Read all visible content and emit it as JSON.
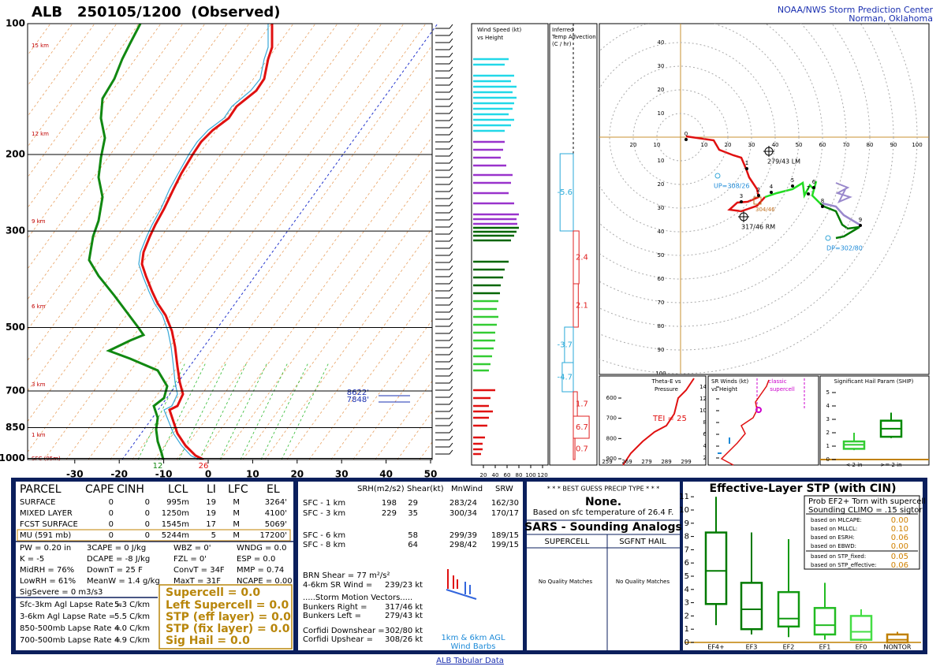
{
  "header": {
    "title": "ALB   250105/1200  (Observed)",
    "agency": "NOAA/NWS Storm Prediction Center",
    "location": "Norman, Oklahoma"
  },
  "skewt": {
    "yticks": [
      100,
      200,
      300,
      500,
      700,
      850,
      1000
    ],
    "xticks": [
      -30,
      -20,
      -10,
      0,
      10,
      20,
      30,
      40,
      50
    ],
    "height_labels": [
      "15 km",
      "12 km",
      "9 km",
      "6 km",
      "3 km",
      "1 km",
      "SFC (95m)"
    ],
    "sfc_dewpoint": "12",
    "sfc_temp": "26",
    "level_labels": [
      "8622'",
      "7848'"
    ]
  },
  "wind_speed": {
    "title": "Wind Speed (kt)",
    "subtitle": "vs Height",
    "xticks": [
      20,
      40,
      60,
      80,
      100,
      120
    ]
  },
  "temp_advection": {
    "title": [
      "Inferred",
      "Temp Advection",
      "(C / hr)"
    ],
    "values": [
      -5.6,
      2.4,
      2.1,
      -3.7,
      -4.7,
      1.7,
      6.7,
      0.7
    ]
  },
  "hodograph": {
    "up_labels": [
      40,
      30,
      20,
      10
    ],
    "down_labels": [
      10,
      20,
      30,
      40,
      50,
      60,
      70,
      80,
      90,
      100
    ],
    "left_labels": [
      20,
      10
    ],
    "right_labels": [
      10,
      20,
      30,
      40,
      50,
      60,
      70,
      80,
      90,
      100
    ],
    "points": [
      0,
      1,
      2,
      3,
      4,
      5,
      6,
      7,
      8,
      9
    ],
    "annotations": [
      "279/43 LM",
      "UP=308/26",
      "317/46 RM",
      "304/46",
      "DP=302/80"
    ]
  },
  "theta_e": {
    "title": [
      "Theta-E vs",
      "Pressure"
    ],
    "yticks": [
      600,
      700,
      800,
      900
    ],
    "xticks": [
      259,
      269,
      279,
      289,
      299
    ],
    "tei": "TEI = 25"
  },
  "sr_winds": {
    "title": [
      "SR Winds (kt)",
      "vs Height"
    ],
    "yticks": [
      2,
      4,
      6,
      8,
      10,
      12,
      14
    ],
    "annotation": [
      "classic",
      "supercell"
    ]
  },
  "ship": {
    "title": "Significant Hail Param (SHIP)",
    "yticks": [
      0,
      1,
      2,
      3,
      4,
      5
    ],
    "categories": [
      "< 2 in",
      ">= 2 in"
    ],
    "colors": [
      "#33cc33",
      "#008800"
    ],
    "boxes": [
      {
        "low": 0.7,
        "q1": 0.8,
        "median": 1.1,
        "q3": 1.35,
        "high": 2.0
      },
      {
        "low": 1.6,
        "q1": 1.7,
        "median": 2.3,
        "q3": 2.9,
        "high": 3.5
      }
    ]
  },
  "parcels": {
    "header": [
      "PARCEL",
      "CAPE",
      "CINH",
      "LCL",
      "LI",
      "LFC",
      "EL"
    ],
    "rows": [
      [
        "SURFACE",
        0,
        0,
        "995m",
        19,
        "M",
        "3264'"
      ],
      [
        "MIXED LAYER",
        0,
        0,
        "1250m",
        19,
        "M",
        "4100'"
      ],
      [
        "FCST SURFACE",
        0,
        0,
        "1545m",
        17,
        "M",
        "5069'"
      ],
      [
        "MU  (591 mb)",
        0,
        0,
        "5244m",
        5,
        "M",
        "17200'"
      ]
    ]
  },
  "indices": {
    "rows": [
      [
        "PW = 0.20 in",
        "3CAPE = 0 J/kg",
        "WBZ = 0'",
        "WNDG = 0.0"
      ],
      [
        "K = -5",
        "DCAPE = -8 J/kg",
        "FZL = 0'",
        "ESP = 0.0"
      ],
      [
        "MidRH = 76%",
        "DownT = 25 F",
        "ConvT = 34F",
        "MMP = 0.74"
      ],
      [
        "LowRH = 61%",
        "MeanW = 1.4 g/kg",
        "MaxT = 31F",
        "NCAPE = 0.00"
      ]
    ],
    "sig_severe": "SigSevere = 0 m3/s3"
  },
  "lapse_rates": [
    [
      "Sfc-3km Agl Lapse Rate =",
      "5.3 C/km"
    ],
    [
      "3-6km Agl Lapse Rate =",
      "5.5 C/km"
    ],
    [
      "850-500mb Lapse Rate =",
      "4.0 C/km"
    ],
    [
      "700-500mb Lapse Rate =",
      "4.9 C/km"
    ]
  ],
  "severe_params": [
    "Supercell = 0.0",
    "Left Supercell = 0.0",
    "STP (eff layer) = 0.0",
    "STP (fix layer) = 0.0",
    "Sig Hail = 0.0"
  ],
  "kinematics": {
    "header": [
      "SRH(m2/s2)",
      "Shear(kt)",
      "MnWind",
      "SRW"
    ],
    "rows": [
      [
        "SFC - 1 km",
        198,
        29,
        "283/24",
        "162/30"
      ],
      [
        "SFC - 3 km",
        229,
        35,
        "300/34",
        "170/17"
      ],
      [
        "SFC - 6 km",
        null,
        58,
        "299/39",
        "189/15"
      ],
      [
        "SFC - 8 km",
        null,
        64,
        "298/42",
        "199/15"
      ]
    ],
    "brn": "BRN Shear = 77 m²/s²",
    "sr_wind": [
      "4-6km SR Wind =",
      "239/23 kt"
    ],
    "storm_motion_title": ".....Storm Motion Vectors.....",
    "bunkers": [
      [
        "Bunkers Right =",
        "317/46 kt"
      ],
      [
        "Bunkers Left =",
        "279/43 kt"
      ]
    ],
    "corfidi": [
      [
        "Corfidi Downshear =",
        "302/80 kt"
      ],
      [
        "Corfidi Upshear =",
        "308/26 kt"
      ]
    ],
    "barb_note": [
      "1km & 6km AGL",
      "Wind Barbs"
    ]
  },
  "precip": {
    "title": "* * * BEST GUESS PRECIP TYPE * * *",
    "result": "None.",
    "note": "Based on sfc temperature of 26.4 F."
  },
  "sars": {
    "title": "SARS - Sounding Analogs",
    "columns": [
      "SUPERCELL",
      "SGFNT HAIL"
    ],
    "matches": [
      "No Quality Matches",
      "No Quality Matches"
    ]
  },
  "stp": {
    "title": "Effective-Layer STP (with CIN)",
    "yticks": [
      0,
      1,
      2,
      3,
      4,
      5,
      6,
      7,
      8,
      9,
      10,
      11
    ],
    "categories": [
      "EF4+",
      "EF3",
      "EF2",
      "EF1",
      "EF0",
      "NONTOR"
    ],
    "colors": [
      "#007a00",
      "#007a00",
      "#119911",
      "#22bb22",
      "#44dd44",
      "#c08000"
    ],
    "boxes": [
      {
        "low": 1.3,
        "q1": 2.9,
        "median": 5.4,
        "q3": 8.3,
        "high": 11
      },
      {
        "low": 0.6,
        "q1": 1.0,
        "median": 2.5,
        "q3": 4.5,
        "high": 8.3
      },
      {
        "low": 0.4,
        "q1": 1.2,
        "median": 1.8,
        "q3": 3.8,
        "high": 7.8
      },
      {
        "low": 0.2,
        "q1": 0.6,
        "median": 1.3,
        "q3": 2.6,
        "high": 4.5
      },
      {
        "low": 0.1,
        "q1": 0.2,
        "median": 0.8,
        "q3": 2.0,
        "high": 2.5
      },
      {
        "low": 0,
        "q1": 0,
        "median": 0.2,
        "q3": 0.6,
        "high": 0.8
      }
    ],
    "legend": {
      "title": [
        "Prob EF2+ Torn with supercell",
        "Sounding CLIMO = .15 sigtor"
      ],
      "rows": [
        [
          "based on MLCAPE:",
          "0.00"
        ],
        [
          "based on MLLCL:",
          "0.10"
        ],
        [
          "based on ESRH:",
          "0.06"
        ],
        [
          "based on EBWD:",
          "0.00"
        ],
        [
          "based on STP_fixed:",
          "0.05"
        ],
        [
          "based on STP_effective:",
          "0.06"
        ]
      ]
    }
  },
  "footer": "ALB Tabular Data"
}
